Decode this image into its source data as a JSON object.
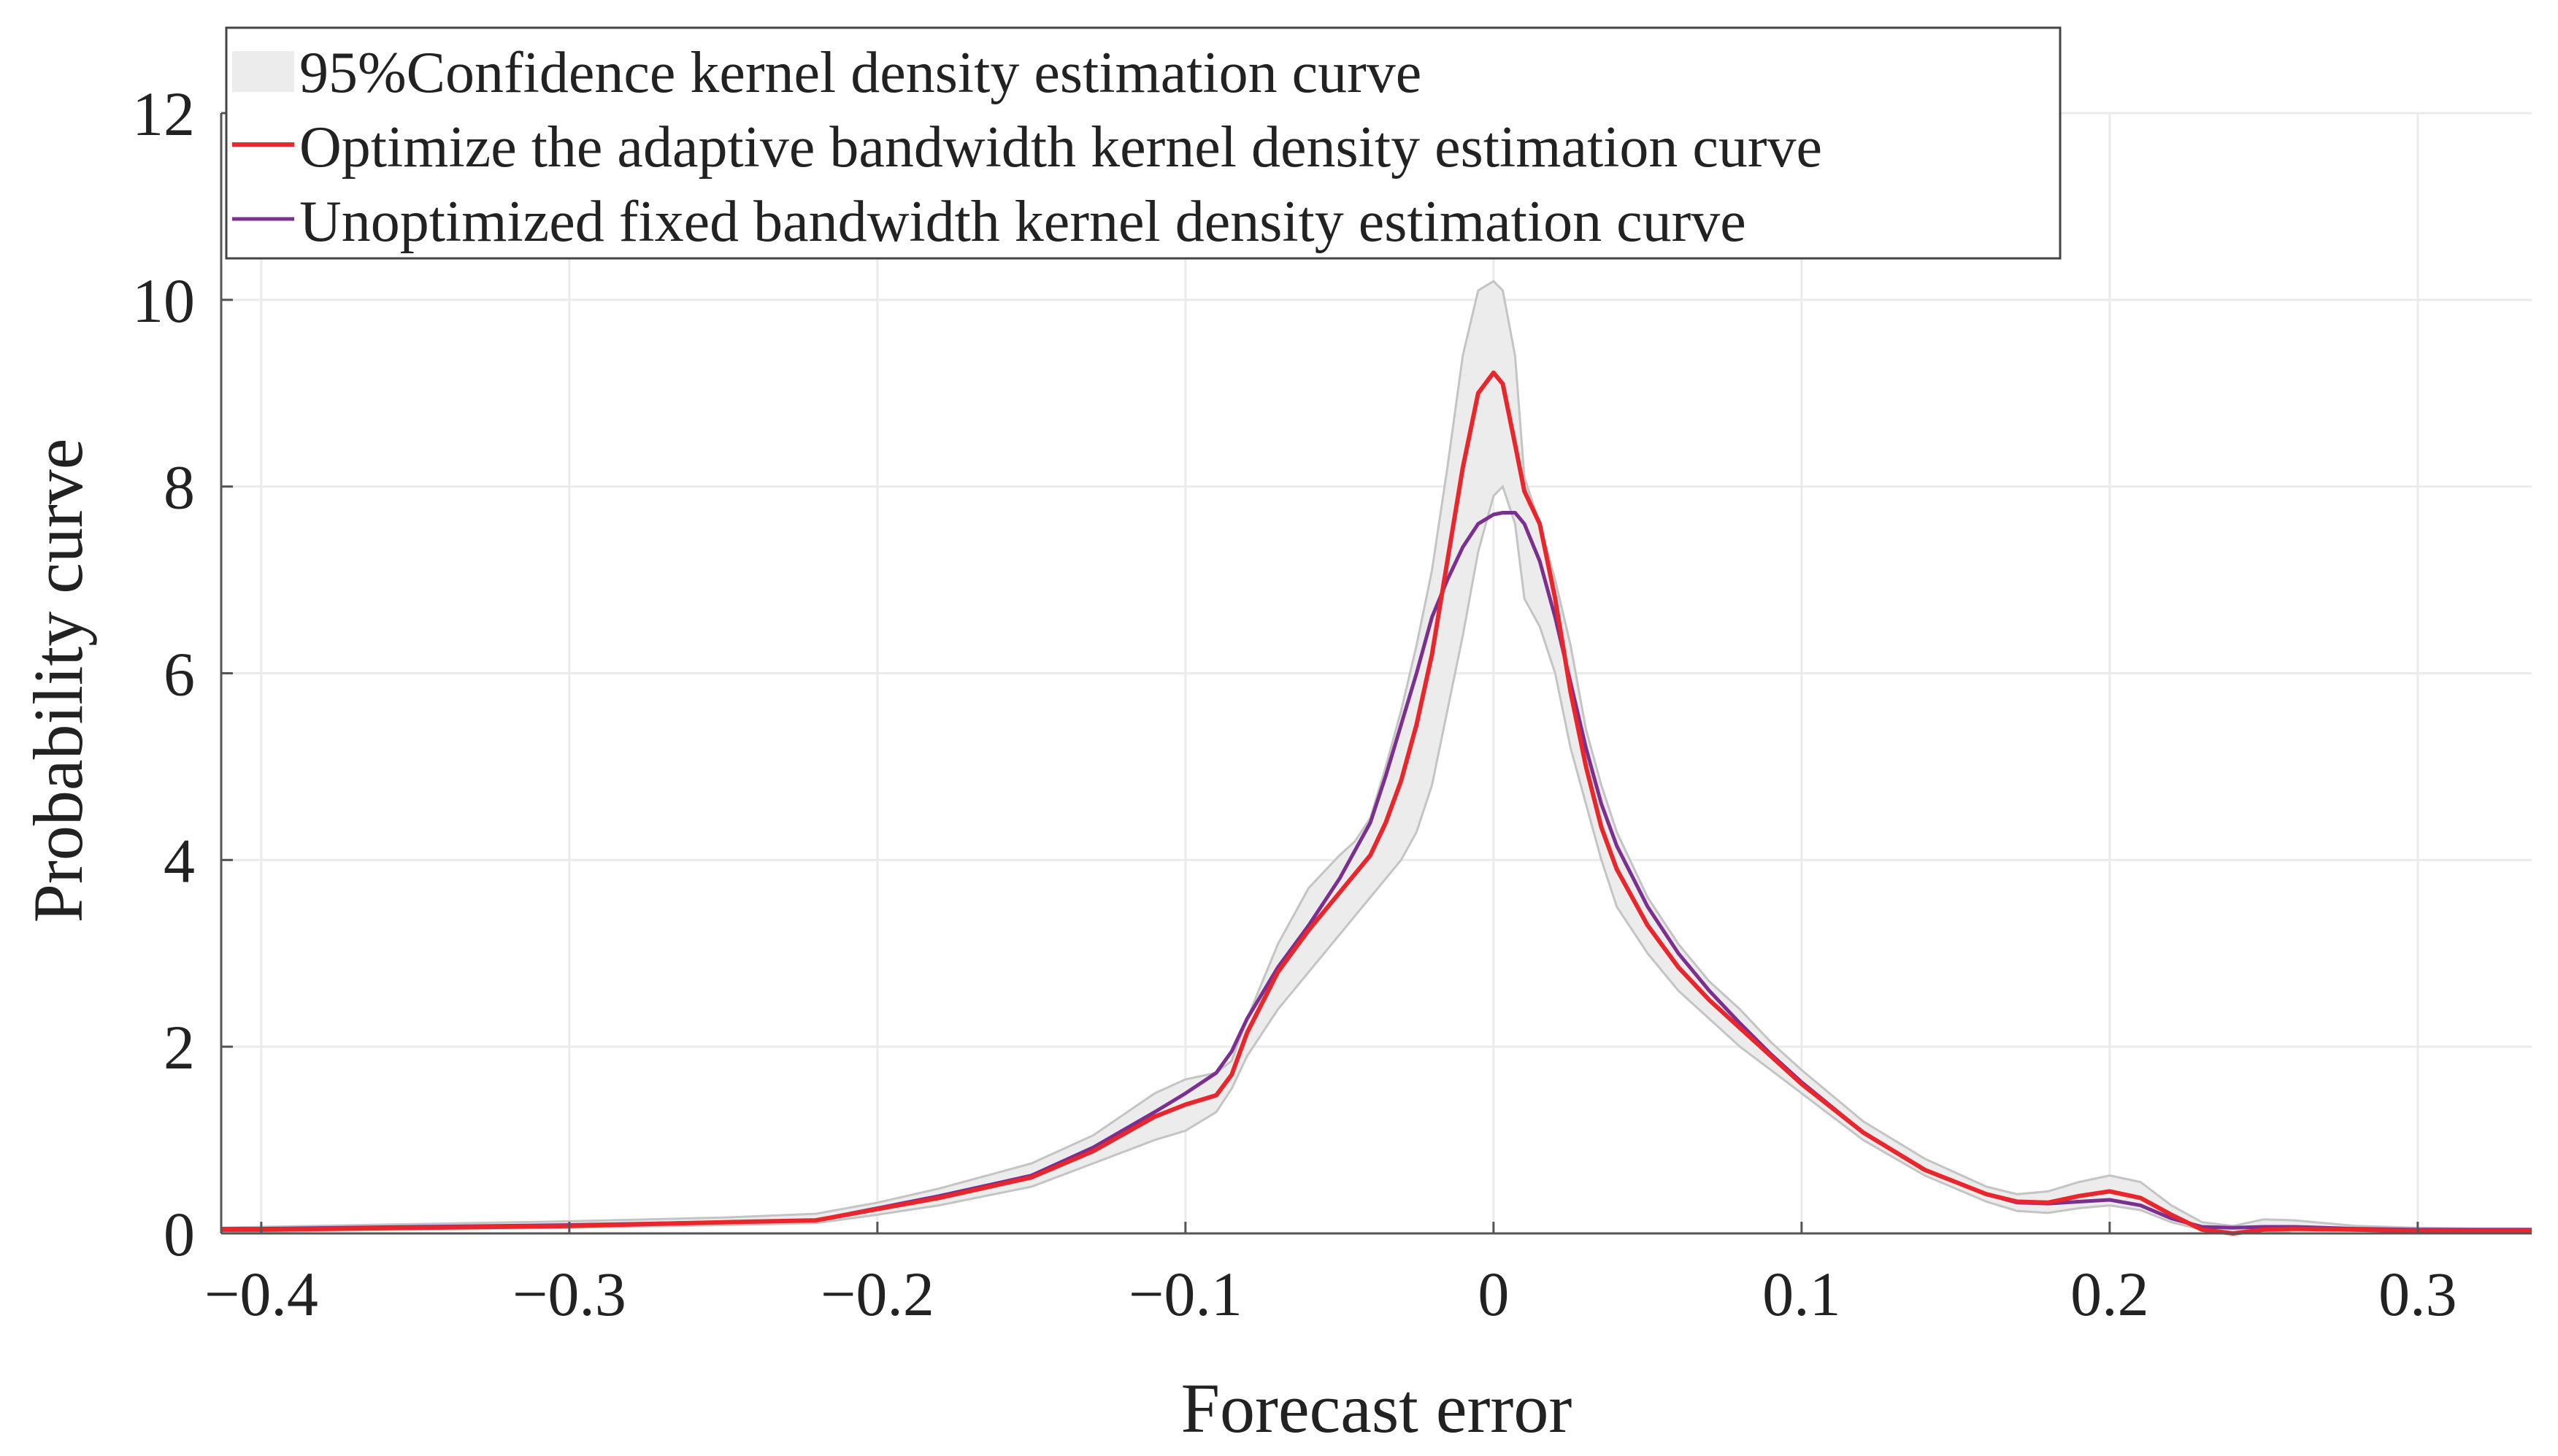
{
  "chart_data": {
    "type": "line",
    "title": "",
    "xlabel": "Forecast error",
    "ylabel": "Probability curve",
    "xlim": [
      -0.413,
      0.337
    ],
    "ylim": [
      0,
      12
    ],
    "grid": true,
    "legend_position": "top-left",
    "x_ticks": [
      -0.4,
      -0.3,
      -0.2,
      -0.1,
      0,
      0.1,
      0.2,
      0.3
    ],
    "x_tick_labels": [
      "−0.4",
      "−0.3",
      "−0.2",
      "−0.1",
      "0",
      "0.1",
      "0.2",
      "0.3"
    ],
    "y_ticks": [
      0,
      2,
      4,
      6,
      8,
      10,
      12
    ],
    "y_tick_labels": [
      "0",
      "2",
      "4",
      "6",
      "8",
      "10",
      "12"
    ],
    "legend": [
      "95%Confidence kernel density estimation curve",
      "Optimize the adaptive bandwidth kernel density estimation curve",
      "Unoptimized fixed bandwidth kernel density estimation curve"
    ],
    "colors": {
      "band_fill": "#ececec",
      "band_edge": "#c4c4c4",
      "optimized": "#e8262b",
      "unoptimized": "#7b2f8e",
      "grid": "#ebebeb",
      "axis": "#555555"
    },
    "x": [
      -0.413,
      -0.4,
      -0.35,
      -0.3,
      -0.25,
      -0.22,
      -0.2,
      -0.18,
      -0.15,
      -0.13,
      -0.11,
      -0.1,
      -0.09,
      -0.085,
      -0.08,
      -0.07,
      -0.06,
      -0.05,
      -0.045,
      -0.04,
      -0.035,
      -0.03,
      -0.025,
      -0.02,
      -0.015,
      -0.01,
      -0.005,
      0,
      0.003,
      0.007,
      0.01,
      0.015,
      0.02,
      0.025,
      0.03,
      0.035,
      0.04,
      0.05,
      0.06,
      0.07,
      0.08,
      0.09,
      0.1,
      0.12,
      0.14,
      0.16,
      0.17,
      0.18,
      0.19,
      0.2,
      0.21,
      0.22,
      0.23,
      0.24,
      0.25,
      0.26,
      0.28,
      0.3,
      0.32,
      0.337
    ],
    "series": [
      {
        "name": "95% confidence upper bound",
        "role": "band_upper",
        "values": [
          0.06,
          0.07,
          0.1,
          0.13,
          0.17,
          0.21,
          0.33,
          0.48,
          0.75,
          1.05,
          1.5,
          1.65,
          1.72,
          1.85,
          2.3,
          3.1,
          3.7,
          4.05,
          4.2,
          4.45,
          5.0,
          5.6,
          6.3,
          7.1,
          8.2,
          9.4,
          10.1,
          10.2,
          10.1,
          9.4,
          8.1,
          7.6,
          7.0,
          6.3,
          5.4,
          4.8,
          4.3,
          3.6,
          3.1,
          2.7,
          2.4,
          2.05,
          1.75,
          1.2,
          0.8,
          0.5,
          0.42,
          0.45,
          0.55,
          0.62,
          0.55,
          0.3,
          0.12,
          0.08,
          0.15,
          0.14,
          0.08,
          0.06,
          0.05,
          0.05
        ]
      },
      {
        "name": "95% confidence lower bound",
        "role": "band_lower",
        "values": [
          0.02,
          0.02,
          0.04,
          0.06,
          0.09,
          0.11,
          0.2,
          0.3,
          0.5,
          0.75,
          1.0,
          1.1,
          1.3,
          1.55,
          1.9,
          2.4,
          2.8,
          3.2,
          3.4,
          3.6,
          3.8,
          4.0,
          4.3,
          4.8,
          5.6,
          6.4,
          7.3,
          7.9,
          8.0,
          7.6,
          6.8,
          6.5,
          6.0,
          5.2,
          4.6,
          4.0,
          3.5,
          3.0,
          2.6,
          2.3,
          2.0,
          1.75,
          1.5,
          1.0,
          0.62,
          0.34,
          0.24,
          0.22,
          0.27,
          0.3,
          0.25,
          0.12,
          0.04,
          0.0,
          0.0,
          0.03,
          0.03,
          0.03,
          0.03,
          0.03
        ]
      },
      {
        "name": "Optimize the adaptive bandwidth kernel density estimation curve",
        "role": "optimized",
        "values": [
          0.04,
          0.04,
          0.06,
          0.08,
          0.12,
          0.14,
          0.26,
          0.38,
          0.6,
          0.88,
          1.25,
          1.38,
          1.48,
          1.7,
          2.15,
          2.8,
          3.25,
          3.65,
          3.85,
          4.05,
          4.4,
          4.85,
          5.45,
          6.2,
          7.2,
          8.2,
          9.0,
          9.22,
          9.1,
          8.45,
          7.95,
          7.6,
          6.8,
          5.8,
          5.0,
          4.35,
          3.9,
          3.3,
          2.85,
          2.5,
          2.2,
          1.9,
          1.6,
          1.08,
          0.68,
          0.42,
          0.34,
          0.33,
          0.4,
          0.45,
          0.38,
          0.2,
          0.04,
          0.0,
          0.04,
          0.05,
          0.04,
          0.03,
          0.03,
          0.03
        ]
      },
      {
        "name": "Unoptimized fixed bandwidth kernel density estimation curve",
        "role": "unoptimized",
        "values": [
          0.05,
          0.05,
          0.07,
          0.09,
          0.12,
          0.14,
          0.27,
          0.4,
          0.62,
          0.92,
          1.3,
          1.5,
          1.72,
          1.95,
          2.3,
          2.85,
          3.3,
          3.8,
          4.1,
          4.4,
          4.9,
          5.45,
          6.0,
          6.6,
          7.0,
          7.35,
          7.6,
          7.7,
          7.72,
          7.72,
          7.6,
          7.2,
          6.6,
          5.9,
          5.2,
          4.6,
          4.15,
          3.5,
          3.0,
          2.6,
          2.25,
          1.92,
          1.62,
          1.08,
          0.68,
          0.42,
          0.33,
          0.32,
          0.34,
          0.36,
          0.3,
          0.16,
          0.07,
          0.06,
          0.07,
          0.07,
          0.05,
          0.04,
          0.04,
          0.04
        ]
      }
    ]
  }
}
